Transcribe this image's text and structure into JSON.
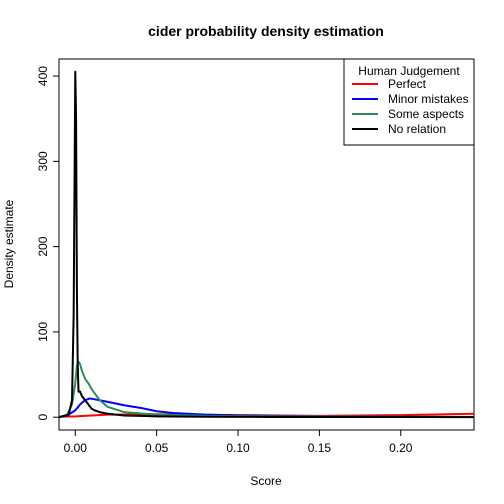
{
  "chart_data": {
    "type": "line",
    "title": "cider  probability density estimation",
    "xlabel": "Score",
    "ylabel": "Density estimate",
    "xlim": [
      -0.01,
      0.245
    ],
    "ylim": [
      -15,
      420
    ],
    "xticks": [
      0.0,
      0.05,
      0.1,
      0.15,
      0.2
    ],
    "xtick_labels": [
      "0.00",
      "0.05",
      "0.10",
      "0.15",
      "0.20"
    ],
    "yticks": [
      0,
      100,
      200,
      300,
      400
    ],
    "ytick_labels": [
      "0",
      "100",
      "200",
      "300",
      "400"
    ],
    "grid": false,
    "legend": {
      "title": "Human Judgement",
      "placement": "top-right"
    },
    "series": [
      {
        "name": "Perfect",
        "color": "#ff0000",
        "x": [
          -0.01,
          0.0,
          0.01,
          0.02,
          0.05,
          0.1,
          0.15,
          0.2,
          0.245
        ],
        "y": [
          0.5,
          1,
          2,
          3,
          3.5,
          2.5,
          1.5,
          2.5,
          4
        ]
      },
      {
        "name": "Minor mistakes",
        "color": "#0000ff",
        "x": [
          -0.01,
          -0.005,
          0.0,
          0.003,
          0.006,
          0.009,
          0.012,
          0.02,
          0.03,
          0.04,
          0.05,
          0.06,
          0.08,
          0.1,
          0.15,
          0.2,
          0.245
        ],
        "y": [
          0,
          2,
          8,
          15,
          20,
          22,
          21,
          18,
          14,
          11,
          7,
          5,
          3,
          2,
          1,
          0.5,
          0.3
        ]
      },
      {
        "name": "Some aspects",
        "color": "#2e8b57",
        "x": [
          -0.01,
          -0.005,
          -0.002,
          0.0,
          0.001,
          0.002,
          0.003,
          0.004,
          0.006,
          0.008,
          0.01,
          0.015,
          0.02,
          0.03,
          0.05,
          0.08,
          0.12,
          0.2,
          0.245
        ],
        "y": [
          0,
          3,
          15,
          40,
          60,
          65,
          62,
          55,
          45,
          40,
          33,
          20,
          12,
          6,
          3,
          1.5,
          1,
          0.5,
          0.3
        ]
      },
      {
        "name": "No relation",
        "color": "#000000",
        "x": [
          -0.01,
          -0.004,
          -0.002,
          -0.001,
          0.0,
          0.0005,
          0.001,
          0.0015,
          0.002,
          0.003,
          0.004,
          0.006,
          0.008,
          0.01,
          0.012,
          0.015,
          0.02,
          0.025,
          0.03,
          0.04,
          0.05,
          0.08,
          0.12,
          0.2,
          0.245
        ],
        "y": [
          0,
          3,
          20,
          120,
          405,
          350,
          150,
          60,
          30,
          30,
          25,
          20,
          15,
          10,
          8,
          6,
          4,
          3,
          2,
          1.5,
          1,
          0.5,
          0.3,
          0.2,
          0.1
        ]
      }
    ]
  }
}
